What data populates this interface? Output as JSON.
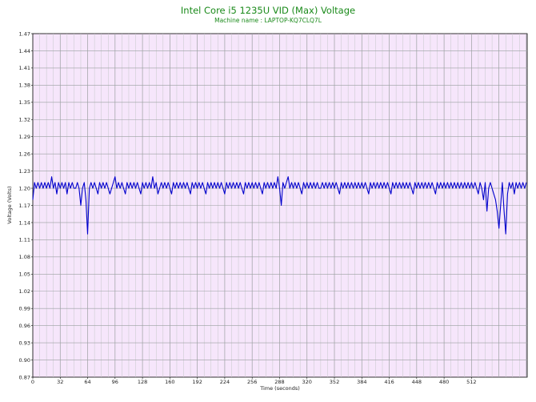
{
  "chart_data": {
    "type": "line",
    "title": "Intel Core i5 1235U VID (Max) Voltage",
    "subtitle": "Machine name : LAPTOP-KQ7CLQ7L",
    "xlabel": "Time (seconds)",
    "ylabel": "Voltage (Volts)",
    "xlim": [
      0,
      577
    ],
    "ylim": [
      0.87,
      1.47
    ],
    "x_ticks": [
      0,
      32,
      64,
      96,
      128,
      160,
      192,
      224,
      256,
      288,
      320,
      352,
      384,
      416,
      448,
      480,
      512
    ],
    "y_ticks": [
      0.87,
      0.9,
      0.93,
      0.96,
      0.99,
      1.02,
      1.05,
      1.08,
      1.11,
      1.14,
      1.17,
      1.2,
      1.23,
      1.26,
      1.29,
      1.32,
      1.35,
      1.38,
      1.41,
      1.44,
      1.47
    ],
    "x_tick_labels": [
      "0",
      "32",
      "64",
      "96",
      "128",
      "160",
      "192",
      "224",
      "256",
      "288",
      "320",
      "352",
      "384",
      "416",
      "448",
      "480",
      "512"
    ],
    "y_tick_labels": [
      "0.87",
      "0.90",
      "0.93",
      "0.96",
      "0.99",
      "1.02",
      "1.05",
      "1.08",
      "1.11",
      "1.14",
      "1.17",
      "1.20",
      "1.23",
      "1.26",
      "1.29",
      "1.32",
      "1.35",
      "1.38",
      "1.41",
      "1.44",
      "1.47"
    ],
    "grid": true,
    "baseline_value": 1.205,
    "series": [
      {
        "color": "#0000cc",
        "points": [
          [
            0,
            1.18
          ],
          [
            2,
            1.21
          ],
          [
            4,
            1.2
          ],
          [
            6,
            1.21
          ],
          [
            8,
            1.2
          ],
          [
            10,
            1.21
          ],
          [
            12,
            1.2
          ],
          [
            14,
            1.21
          ],
          [
            16,
            1.2
          ],
          [
            18,
            1.21
          ],
          [
            20,
            1.2
          ],
          [
            22,
            1.22
          ],
          [
            24,
            1.2
          ],
          [
            26,
            1.21
          ],
          [
            28,
            1.19
          ],
          [
            30,
            1.21
          ],
          [
            32,
            1.2
          ],
          [
            34,
            1.21
          ],
          [
            36,
            1.2
          ],
          [
            38,
            1.21
          ],
          [
            40,
            1.19
          ],
          [
            42,
            1.21
          ],
          [
            44,
            1.2
          ],
          [
            46,
            1.21
          ],
          [
            48,
            1.2
          ],
          [
            50,
            1.2
          ],
          [
            52,
            1.21
          ],
          [
            54,
            1.2
          ],
          [
            56,
            1.17
          ],
          [
            58,
            1.2
          ],
          [
            60,
            1.21
          ],
          [
            62,
            1.18
          ],
          [
            64,
            1.12
          ],
          [
            66,
            1.2
          ],
          [
            68,
            1.21
          ],
          [
            70,
            1.2
          ],
          [
            72,
            1.21
          ],
          [
            74,
            1.2
          ],
          [
            76,
            1.19
          ],
          [
            78,
            1.21
          ],
          [
            80,
            1.2
          ],
          [
            82,
            1.21
          ],
          [
            84,
            1.2
          ],
          [
            86,
            1.21
          ],
          [
            88,
            1.2
          ],
          [
            90,
            1.19
          ],
          [
            92,
            1.2
          ],
          [
            94,
            1.21
          ],
          [
            96,
            1.22
          ],
          [
            98,
            1.2
          ],
          [
            100,
            1.21
          ],
          [
            102,
            1.2
          ],
          [
            104,
            1.21
          ],
          [
            106,
            1.2
          ],
          [
            108,
            1.19
          ],
          [
            110,
            1.21
          ],
          [
            112,
            1.2
          ],
          [
            114,
            1.21
          ],
          [
            116,
            1.2
          ],
          [
            118,
            1.21
          ],
          [
            120,
            1.2
          ],
          [
            122,
            1.21
          ],
          [
            124,
            1.2
          ],
          [
            126,
            1.19
          ],
          [
            128,
            1.21
          ],
          [
            130,
            1.2
          ],
          [
            132,
            1.21
          ],
          [
            134,
            1.2
          ],
          [
            136,
            1.21
          ],
          [
            138,
            1.2
          ],
          [
            140,
            1.22
          ],
          [
            142,
            1.2
          ],
          [
            144,
            1.21
          ],
          [
            146,
            1.19
          ],
          [
            148,
            1.2
          ],
          [
            150,
            1.21
          ],
          [
            152,
            1.2
          ],
          [
            154,
            1.21
          ],
          [
            156,
            1.2
          ],
          [
            158,
            1.21
          ],
          [
            160,
            1.2
          ],
          [
            162,
            1.19
          ],
          [
            164,
            1.21
          ],
          [
            166,
            1.2
          ],
          [
            168,
            1.21
          ],
          [
            170,
            1.2
          ],
          [
            172,
            1.21
          ],
          [
            174,
            1.2
          ],
          [
            176,
            1.21
          ],
          [
            178,
            1.2
          ],
          [
            180,
            1.21
          ],
          [
            182,
            1.2
          ],
          [
            184,
            1.19
          ],
          [
            186,
            1.21
          ],
          [
            188,
            1.2
          ],
          [
            190,
            1.21
          ],
          [
            192,
            1.2
          ],
          [
            194,
            1.21
          ],
          [
            196,
            1.2
          ],
          [
            198,
            1.21
          ],
          [
            200,
            1.2
          ],
          [
            202,
            1.19
          ],
          [
            204,
            1.21
          ],
          [
            206,
            1.2
          ],
          [
            208,
            1.21
          ],
          [
            210,
            1.2
          ],
          [
            212,
            1.21
          ],
          [
            214,
            1.2
          ],
          [
            216,
            1.21
          ],
          [
            218,
            1.2
          ],
          [
            220,
            1.21
          ],
          [
            222,
            1.2
          ],
          [
            224,
            1.19
          ],
          [
            226,
            1.21
          ],
          [
            228,
            1.2
          ],
          [
            230,
            1.21
          ],
          [
            232,
            1.2
          ],
          [
            234,
            1.21
          ],
          [
            236,
            1.2
          ],
          [
            238,
            1.21
          ],
          [
            240,
            1.2
          ],
          [
            242,
            1.21
          ],
          [
            244,
            1.2
          ],
          [
            246,
            1.19
          ],
          [
            248,
            1.21
          ],
          [
            250,
            1.2
          ],
          [
            252,
            1.21
          ],
          [
            254,
            1.2
          ],
          [
            256,
            1.21
          ],
          [
            258,
            1.2
          ],
          [
            260,
            1.21
          ],
          [
            262,
            1.2
          ],
          [
            264,
            1.21
          ],
          [
            266,
            1.2
          ],
          [
            268,
            1.19
          ],
          [
            270,
            1.21
          ],
          [
            272,
            1.2
          ],
          [
            274,
            1.21
          ],
          [
            276,
            1.2
          ],
          [
            278,
            1.21
          ],
          [
            280,
            1.2
          ],
          [
            282,
            1.21
          ],
          [
            284,
            1.2
          ],
          [
            286,
            1.22
          ],
          [
            288,
            1.2
          ],
          [
            290,
            1.17
          ],
          [
            292,
            1.21
          ],
          [
            294,
            1.2
          ],
          [
            296,
            1.21
          ],
          [
            298,
            1.22
          ],
          [
            300,
            1.2
          ],
          [
            302,
            1.21
          ],
          [
            304,
            1.2
          ],
          [
            306,
            1.21
          ],
          [
            308,
            1.2
          ],
          [
            310,
            1.21
          ],
          [
            312,
            1.2
          ],
          [
            314,
            1.19
          ],
          [
            316,
            1.21
          ],
          [
            318,
            1.2
          ],
          [
            320,
            1.21
          ],
          [
            322,
            1.2
          ],
          [
            324,
            1.21
          ],
          [
            326,
            1.2
          ],
          [
            328,
            1.21
          ],
          [
            330,
            1.2
          ],
          [
            332,
            1.21
          ],
          [
            334,
            1.2
          ],
          [
            336,
            1.2
          ],
          [
            338,
            1.21
          ],
          [
            340,
            1.2
          ],
          [
            342,
            1.21
          ],
          [
            344,
            1.2
          ],
          [
            346,
            1.21
          ],
          [
            348,
            1.2
          ],
          [
            350,
            1.21
          ],
          [
            352,
            1.2
          ],
          [
            354,
            1.21
          ],
          [
            356,
            1.2
          ],
          [
            358,
            1.19
          ],
          [
            360,
            1.21
          ],
          [
            362,
            1.2
          ],
          [
            364,
            1.21
          ],
          [
            366,
            1.2
          ],
          [
            368,
            1.21
          ],
          [
            370,
            1.2
          ],
          [
            372,
            1.21
          ],
          [
            374,
            1.2
          ],
          [
            376,
            1.21
          ],
          [
            378,
            1.2
          ],
          [
            380,
            1.21
          ],
          [
            382,
            1.2
          ],
          [
            384,
            1.21
          ],
          [
            386,
            1.2
          ],
          [
            388,
            1.21
          ],
          [
            390,
            1.2
          ],
          [
            392,
            1.19
          ],
          [
            394,
            1.21
          ],
          [
            396,
            1.2
          ],
          [
            398,
            1.21
          ],
          [
            400,
            1.2
          ],
          [
            402,
            1.21
          ],
          [
            404,
            1.2
          ],
          [
            406,
            1.21
          ],
          [
            408,
            1.2
          ],
          [
            410,
            1.21
          ],
          [
            412,
            1.2
          ],
          [
            414,
            1.21
          ],
          [
            416,
            1.2
          ],
          [
            418,
            1.19
          ],
          [
            420,
            1.21
          ],
          [
            422,
            1.2
          ],
          [
            424,
            1.21
          ],
          [
            426,
            1.2
          ],
          [
            428,
            1.21
          ],
          [
            430,
            1.2
          ],
          [
            432,
            1.21
          ],
          [
            434,
            1.2
          ],
          [
            436,
            1.21
          ],
          [
            438,
            1.2
          ],
          [
            440,
            1.21
          ],
          [
            442,
            1.2
          ],
          [
            444,
            1.19
          ],
          [
            446,
            1.21
          ],
          [
            448,
            1.2
          ],
          [
            450,
            1.21
          ],
          [
            452,
            1.2
          ],
          [
            454,
            1.21
          ],
          [
            456,
            1.2
          ],
          [
            458,
            1.21
          ],
          [
            460,
            1.2
          ],
          [
            462,
            1.21
          ],
          [
            464,
            1.2
          ],
          [
            466,
            1.21
          ],
          [
            468,
            1.2
          ],
          [
            470,
            1.19
          ],
          [
            472,
            1.21
          ],
          [
            474,
            1.2
          ],
          [
            476,
            1.21
          ],
          [
            478,
            1.2
          ],
          [
            480,
            1.21
          ],
          [
            482,
            1.2
          ],
          [
            484,
            1.21
          ],
          [
            486,
            1.2
          ],
          [
            488,
            1.21
          ],
          [
            490,
            1.2
          ],
          [
            492,
            1.21
          ],
          [
            494,
            1.2
          ],
          [
            496,
            1.21
          ],
          [
            498,
            1.2
          ],
          [
            500,
            1.21
          ],
          [
            502,
            1.2
          ],
          [
            504,
            1.21
          ],
          [
            506,
            1.2
          ],
          [
            508,
            1.21
          ],
          [
            510,
            1.2
          ],
          [
            512,
            1.21
          ],
          [
            514,
            1.2
          ],
          [
            516,
            1.21
          ],
          [
            518,
            1.2
          ],
          [
            520,
            1.19
          ],
          [
            522,
            1.21
          ],
          [
            524,
            1.2
          ],
          [
            526,
            1.18
          ],
          [
            528,
            1.21
          ],
          [
            530,
            1.16
          ],
          [
            532,
            1.2
          ],
          [
            534,
            1.21
          ],
          [
            536,
            1.2
          ],
          [
            538,
            1.19
          ],
          [
            540,
            1.18
          ],
          [
            542,
            1.16
          ],
          [
            544,
            1.13
          ],
          [
            546,
            1.17
          ],
          [
            548,
            1.21
          ],
          [
            550,
            1.16
          ],
          [
            552,
            1.12
          ],
          [
            554,
            1.19
          ],
          [
            556,
            1.21
          ],
          [
            558,
            1.2
          ],
          [
            560,
            1.21
          ],
          [
            562,
            1.19
          ],
          [
            564,
            1.21
          ],
          [
            566,
            1.2
          ],
          [
            568,
            1.21
          ],
          [
            570,
            1.2
          ],
          [
            572,
            1.21
          ],
          [
            574,
            1.2
          ],
          [
            576,
            1.21
          ]
        ]
      }
    ]
  }
}
